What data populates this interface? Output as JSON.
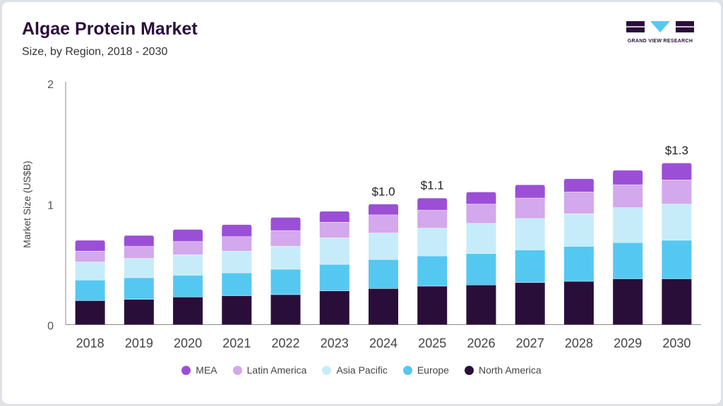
{
  "header": {
    "title": "Algae Protein Market",
    "subtitle": "Size, by Region, 2018 - 2030"
  },
  "logo": {
    "text": "GRAND VIEW RESEARCH"
  },
  "colors": {
    "MEA": "#9b4fd6",
    "Latin America": "#d3a8ec",
    "Asia Pacific": "#c6ecfa",
    "Europe": "#55c8f2",
    "North America": "#2a0e3a"
  },
  "chart_data": {
    "type": "bar",
    "stacked": true,
    "categories": [
      "2018",
      "2019",
      "2020",
      "2021",
      "2022",
      "2023",
      "2024",
      "2025",
      "2026",
      "2027",
      "2028",
      "2029",
      "2030"
    ],
    "series": [
      {
        "name": "North America",
        "values": [
          0.2,
          0.21,
          0.23,
          0.24,
          0.25,
          0.28,
          0.3,
          0.32,
          0.33,
          0.35,
          0.36,
          0.38,
          0.38
        ]
      },
      {
        "name": "Europe",
        "values": [
          0.17,
          0.18,
          0.18,
          0.19,
          0.21,
          0.22,
          0.24,
          0.25,
          0.26,
          0.27,
          0.29,
          0.3,
          0.32
        ]
      },
      {
        "name": "Asia Pacific",
        "values": [
          0.15,
          0.16,
          0.17,
          0.18,
          0.19,
          0.22,
          0.22,
          0.23,
          0.25,
          0.26,
          0.27,
          0.29,
          0.3
        ]
      },
      {
        "name": "Latin America",
        "values": [
          0.09,
          0.1,
          0.11,
          0.12,
          0.13,
          0.13,
          0.15,
          0.15,
          0.16,
          0.17,
          0.18,
          0.19,
          0.2
        ]
      },
      {
        "name": "MEA",
        "values": [
          0.09,
          0.09,
          0.1,
          0.1,
          0.11,
          0.09,
          0.09,
          0.1,
          0.1,
          0.11,
          0.11,
          0.12,
          0.14
        ]
      }
    ],
    "totals_labels": {
      "2024": "$1.0",
      "2025": "$1.1",
      "2030": "$1.3"
    },
    "xlabel": "",
    "ylabel": "Market Size (US$B)",
    "ylim": [
      0,
      2
    ],
    "yticks": [
      "0",
      "1",
      "2"
    ],
    "grid": false,
    "legend_position": "bottom",
    "legend_order": [
      "MEA",
      "Latin America",
      "Asia Pacific",
      "Europe",
      "North America"
    ]
  }
}
